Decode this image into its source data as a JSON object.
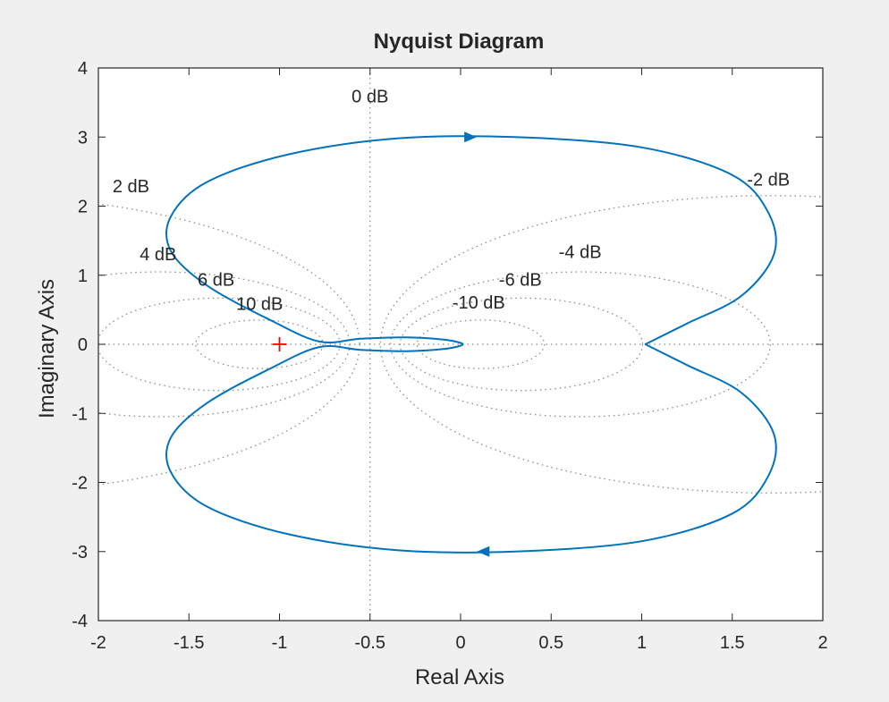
{
  "chart_data": {
    "type": "line",
    "title": "Nyquist Diagram",
    "xlabel": "Real Axis",
    "ylabel": "Imaginary Axis",
    "xlim": [
      -2,
      2
    ],
    "ylim": [
      -4,
      4
    ],
    "x_ticks": [
      -2,
      -1.5,
      -1,
      -0.5,
      0,
      0.5,
      1,
      1.5,
      2
    ],
    "y_ticks": [
      -4,
      -3,
      -2,
      -1,
      0,
      1,
      2,
      3,
      4
    ],
    "x_tick_labels": [
      "-2",
      "-1.5",
      "-1",
      "-0.5",
      "0",
      "0.5",
      "1",
      "1.5",
      "2"
    ],
    "y_tick_labels": [
      "-4",
      "-3",
      "-2",
      "-1",
      "0",
      "1",
      "2",
      "3",
      "4"
    ],
    "grid": "M-circles (constant dB contours, dotted)",
    "grid_labels": [
      {
        "text": "0 dB",
        "at": [
          -0.5,
          3.5
        ]
      },
      {
        "text": "2 dB",
        "at": [
          -1.82,
          2.2
        ]
      },
      {
        "text": "4 dB",
        "at": [
          -1.67,
          1.22
        ]
      },
      {
        "text": "6 dB",
        "at": [
          -1.35,
          0.85
        ]
      },
      {
        "text": "10 dB",
        "at": [
          -1.11,
          0.5
        ]
      },
      {
        "text": "-2 dB",
        "at": [
          1.7,
          2.3
        ]
      },
      {
        "text": "-4 dB",
        "at": [
          0.66,
          1.25
        ]
      },
      {
        "text": "-6 dB",
        "at": [
          0.33,
          0.85
        ]
      },
      {
        "text": "-10 dB",
        "at": [
          0.1,
          0.52
        ]
      }
    ],
    "m_circles_db": [
      2,
      4,
      6,
      10,
      -2,
      -4,
      -6,
      -10
    ],
    "critical_point": [
      -1,
      0
    ],
    "series": [
      {
        "color": "#0072bd",
        "points": [
          [
            1.02,
            0
          ],
          [
            1.25,
            0.3
          ],
          [
            1.55,
            0.7
          ],
          [
            1.73,
            1.3
          ],
          [
            1.7,
            1.9
          ],
          [
            1.5,
            2.45
          ],
          [
            1.0,
            2.85
          ],
          [
            0.3,
            3.0
          ],
          [
            -0.35,
            2.98
          ],
          [
            -0.95,
            2.75
          ],
          [
            -1.4,
            2.35
          ],
          [
            -1.6,
            1.85
          ],
          [
            -1.6,
            1.35
          ],
          [
            -1.4,
            0.85
          ],
          [
            -1.05,
            0.35
          ],
          [
            -0.78,
            0.04
          ],
          [
            -0.55,
            0.08
          ],
          [
            -0.3,
            0.1
          ],
          [
            -0.1,
            0.07
          ],
          [
            0.0,
            0.02
          ],
          [
            0.0,
            -0.02
          ],
          [
            -0.1,
            -0.07
          ],
          [
            -0.3,
            -0.1
          ],
          [
            -0.55,
            -0.08
          ],
          [
            -0.78,
            -0.04
          ],
          [
            -1.05,
            -0.35
          ],
          [
            -1.4,
            -0.85
          ],
          [
            -1.6,
            -1.35
          ],
          [
            -1.6,
            -1.85
          ],
          [
            -1.4,
            -2.35
          ],
          [
            -0.95,
            -2.75
          ],
          [
            -0.35,
            -2.98
          ],
          [
            0.3,
            -3.0
          ],
          [
            1.0,
            -2.85
          ],
          [
            1.5,
            -2.45
          ],
          [
            1.7,
            -1.9
          ],
          [
            1.73,
            -1.3
          ],
          [
            1.55,
            -0.7
          ],
          [
            1.25,
            -0.3
          ],
          [
            1.02,
            0
          ]
        ],
        "arrows": [
          {
            "at": [
              0.05,
              3.0
            ],
            "direction": "right"
          },
          {
            "at": [
              0.13,
              -3.0
            ],
            "direction": "left"
          }
        ]
      }
    ],
    "colors": {
      "background": "#f0f0f0",
      "plot_area": "#ffffff",
      "axes": "#262626",
      "grid": "#8c8c8c",
      "curve": "#0072bd",
      "critical_marker": "#ff0000"
    }
  }
}
